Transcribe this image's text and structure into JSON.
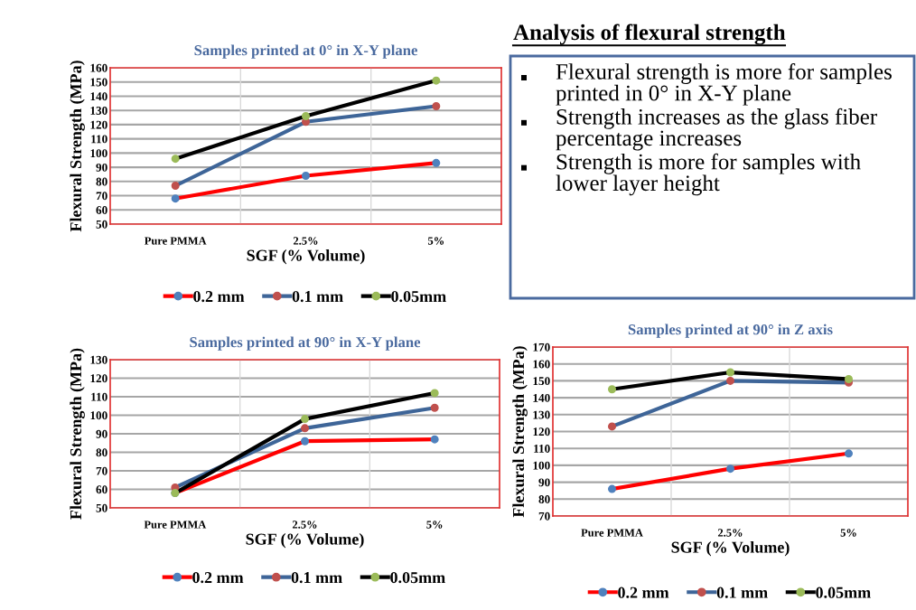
{
  "chart_data": [
    {
      "type": "line",
      "title": "Samples printed at 0° in X-Y plane",
      "xlabel": "SGF (% Volume)",
      "ylabel": "Flexural Strength (MPa)",
      "categories": [
        "Pure PMMA",
        "2.5%",
        "5%"
      ],
      "ylim": [
        50,
        160
      ],
      "yticks": [
        50,
        60,
        70,
        80,
        90,
        100,
        110,
        120,
        130,
        140,
        150,
        160
      ],
      "grid": true,
      "legend": "bottom",
      "marker": "circle",
      "line_style": "solid",
      "series": [
        {
          "name": "0.2 mm",
          "color": "#ff0000",
          "colors": [
            "#4f81bd",
            "#4f81bd",
            "#4f81bd"
          ],
          "values": [
            68,
            84,
            93
          ]
        },
        {
          "name": "0.1 mm",
          "color": "#3e6598",
          "colors": [
            "#c0504d",
            "#c0504d",
            "#c0504d"
          ],
          "values": [
            77,
            122,
            133
          ]
        },
        {
          "name": "0.05mm",
          "color": "#000000",
          "colors": [
            "#9bbb59",
            "#9bbb59",
            "#9bbb59"
          ],
          "values": [
            96,
            126,
            151
          ]
        }
      ]
    },
    {
      "type": "other",
      "title": "Analysis of flexural strength",
      "annotations": [
        "Flexural strength is more for samples printed in 0° in X-Y plane",
        "Strength increases as the glass fiber percentage increases",
        "Strength is more for samples with lower layer height"
      ]
    },
    {
      "type": "line",
      "title": "Samples printed at 90° in X-Y plane",
      "xlabel": "SGF (% Volume)",
      "ylabel": "Flexural Strength (MPa)",
      "categories": [
        "Pure PMMA",
        "2.5%",
        "5%"
      ],
      "ylim": [
        50,
        130
      ],
      "yticks": [
        50,
        60,
        70,
        80,
        90,
        100,
        110,
        120,
        130
      ],
      "grid": true,
      "legend": "bottom",
      "marker": "circle",
      "line_style": "solid",
      "series": [
        {
          "name": "0.2 mm",
          "color": "#ff0000",
          "colors": [
            "#4f81bd",
            "#4f81bd",
            "#4f81bd"
          ],
          "values": [
            58,
            86,
            87
          ]
        },
        {
          "name": "0.1 mm",
          "color": "#3e6598",
          "colors": [
            "#c0504d",
            "#c0504d",
            "#c0504d"
          ],
          "values": [
            61,
            93,
            104
          ]
        },
        {
          "name": "0.05mm",
          "color": "#000000",
          "colors": [
            "#9bbb59",
            "#9bbb59",
            "#9bbb59"
          ],
          "values": [
            58,
            98,
            112
          ]
        }
      ]
    },
    {
      "type": "line",
      "title": "Samples printed at 90° in Z axis",
      "xlabel": "SGF (% Volume)",
      "ylabel": "Flexural Strength (MPa)",
      "categories": [
        "Pure PMMA",
        "2.5%",
        "5%"
      ],
      "ylim": [
        70,
        170
      ],
      "yticks": [
        70,
        80,
        90,
        100,
        110,
        120,
        130,
        140,
        150,
        160,
        170
      ],
      "grid": true,
      "legend": "bottom",
      "marker": "circle",
      "line_style": "solid",
      "series": [
        {
          "name": "0.2 mm",
          "color": "#ff0000",
          "colors": [
            "#4f81bd",
            "#4f81bd",
            "#4f81bd"
          ],
          "values": [
            86,
            98,
            107
          ]
        },
        {
          "name": "0.1 mm",
          "color": "#3e6598",
          "colors": [
            "#c0504d",
            "#c0504d",
            "#c0504d"
          ],
          "values": [
            123,
            150,
            149
          ]
        },
        {
          "name": "0.05mm",
          "color": "#000000",
          "colors": [
            "#9bbb59",
            "#9bbb59",
            "#9bbb59"
          ],
          "values": [
            145,
            155,
            151
          ]
        }
      ]
    }
  ]
}
